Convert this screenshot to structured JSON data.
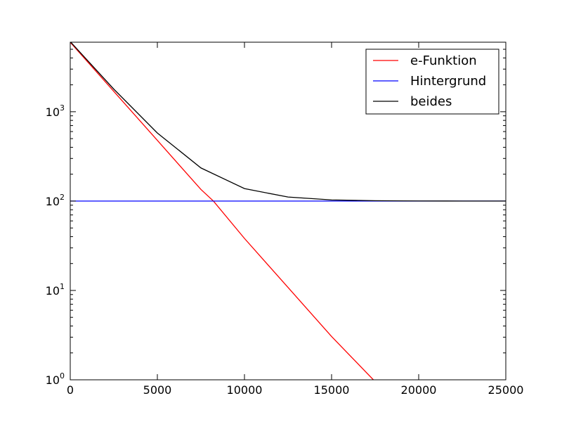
{
  "chart_data": {
    "type": "line",
    "title": "",
    "xlabel": "",
    "ylabel": "",
    "xlim": [
      0,
      25000
    ],
    "ylim": [
      1,
      6000
    ],
    "yscale": "log",
    "grid": false,
    "legend_position": "top-right",
    "x_ticks": [
      {
        "value": 0,
        "label": "0"
      },
      {
        "value": 5000,
        "label": "5000"
      },
      {
        "value": 10000,
        "label": "10000"
      },
      {
        "value": 15000,
        "label": "15000"
      },
      {
        "value": 20000,
        "label": "20000"
      },
      {
        "value": 25000,
        "label": "25000"
      }
    ],
    "y_ticks": [
      {
        "value": 1,
        "base": "10",
        "exp": "0"
      },
      {
        "value": 10,
        "base": "10",
        "exp": "1"
      },
      {
        "value": 100,
        "base": "10",
        "exp": "2"
      },
      {
        "value": 1000,
        "base": "10",
        "exp": "3"
      }
    ],
    "series": [
      {
        "name": "e-Funktion",
        "color": "#ff0000",
        "x": [
          0,
          2500,
          5000,
          7500,
          8220,
          10000,
          12500,
          15000,
          17400
        ],
        "y": [
          5990,
          1690,
          478,
          135,
          100,
          38.2,
          10.8,
          3.05,
          1.0
        ]
      },
      {
        "name": "Hintergrund",
        "color": "#0000ff",
        "x": [
          0,
          25000
        ],
        "y": [
          100,
          100
        ]
      },
      {
        "name": "beides",
        "color": "#000000",
        "x": [
          0,
          2500,
          5000,
          7500,
          10000,
          12500,
          15000,
          17500,
          20000,
          22500,
          25000
        ],
        "y": [
          6090,
          1790,
          578,
          235,
          138,
          111,
          103,
          101,
          100.3,
          100.1,
          100
        ]
      }
    ]
  }
}
